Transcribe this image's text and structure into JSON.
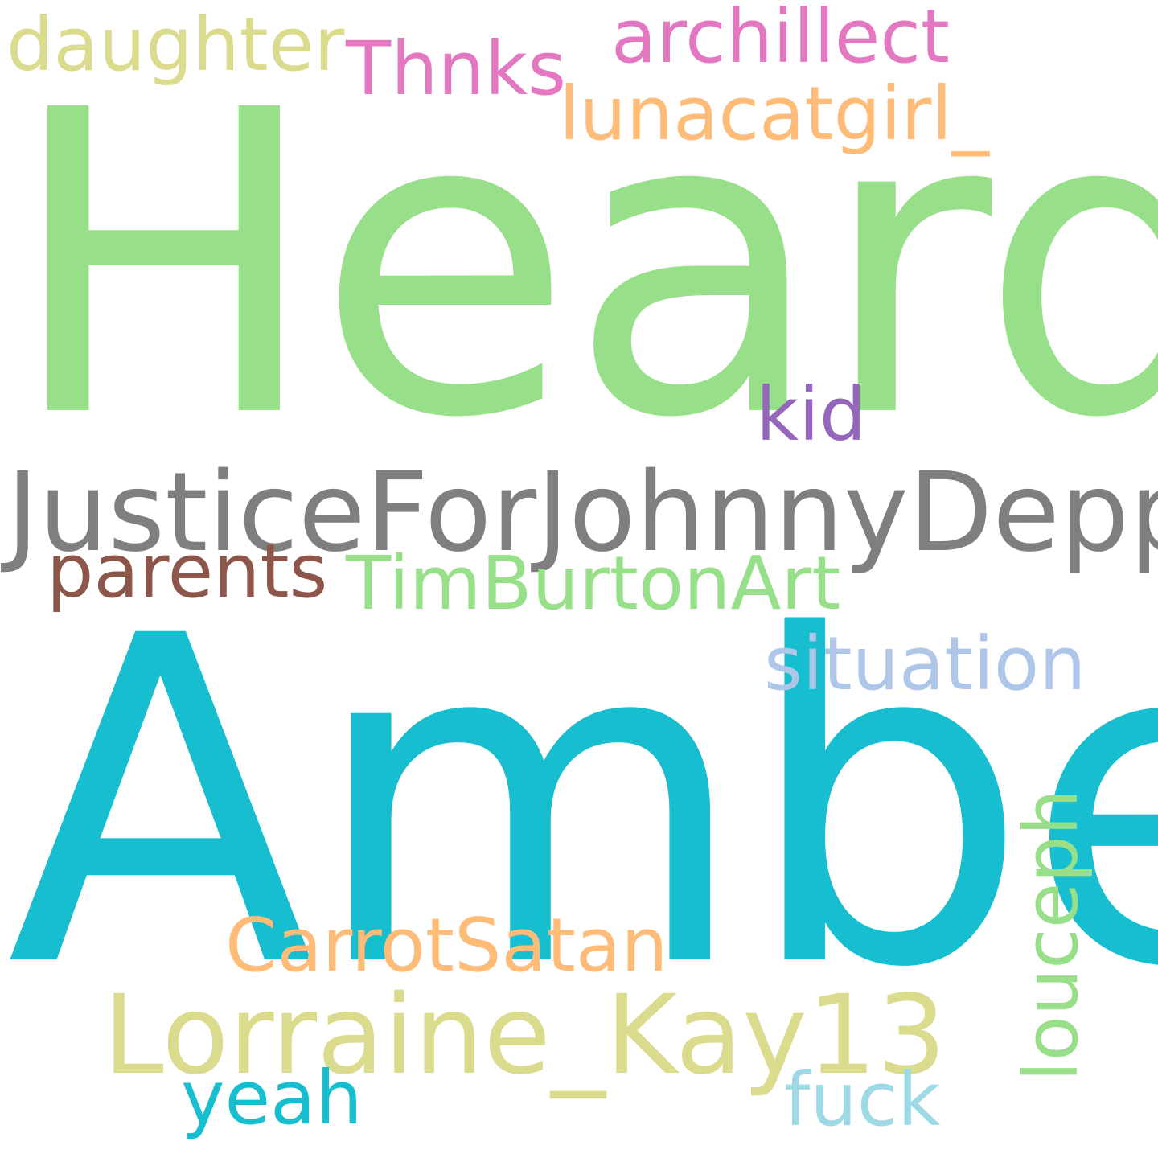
{
  "words": [
    {
      "id": "w-heard",
      "text": "Heard",
      "color": "#98df8a"
    },
    {
      "id": "w-amber",
      "text": "Amber",
      "color": "#17becf"
    },
    {
      "id": "w-justice",
      "text": "JusticeForJohnnyDepp",
      "color": "#7f7f7f"
    },
    {
      "id": "w-daughter",
      "text": "daughter",
      "color": "#dbdb8d"
    },
    {
      "id": "w-archillect",
      "text": "archillect",
      "color": "#e377c2"
    },
    {
      "id": "w-thnks",
      "text": "Thnks",
      "color": "#e377c2"
    },
    {
      "id": "w-lunacatgirl",
      "text": "lunacatgirl_",
      "color": "#ffbb78"
    },
    {
      "id": "w-kid",
      "text": "kid",
      "color": "#9467bd"
    },
    {
      "id": "w-parents",
      "text": "parents",
      "color": "#8c564b"
    },
    {
      "id": "w-timburton",
      "text": "TimBurtonArt",
      "color": "#98df8a"
    },
    {
      "id": "w-situation",
      "text": "situation",
      "color": "#aec7e8"
    },
    {
      "id": "w-carrot",
      "text": "CarrotSatan",
      "color": "#ffbb78"
    },
    {
      "id": "w-lorraine",
      "text": "Lorraine_Kay13",
      "color": "#dbdb8d"
    },
    {
      "id": "w-yeah",
      "text": "yeah",
      "color": "#17becf"
    },
    {
      "id": "w-fuck",
      "text": "fuck",
      "color": "#9edae5"
    },
    {
      "id": "w-louceph",
      "text": "louceph",
      "color": "#98df8a",
      "orientation": "vertical"
    }
  ]
}
